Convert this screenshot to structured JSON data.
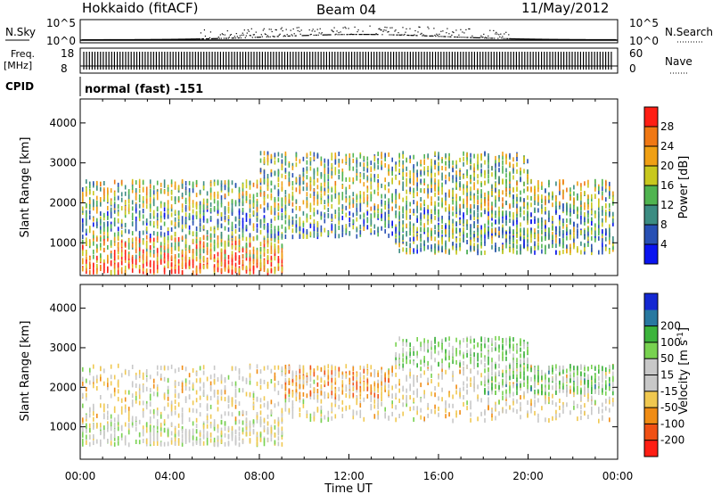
{
  "header": {
    "station": "Hokkaido (fitACF)",
    "beam": "Beam 04",
    "date": "11/May/2012"
  },
  "top_panels": {
    "nsky_label": "N.Sky",
    "nsearch_label": "N.Search",
    "noise_tick_high": "10^5",
    "noise_tick_low": "10^0",
    "freq_label": "Freq.",
    "freq_unit": "[MHz]",
    "freq_tick_high": "18",
    "freq_tick_low": "8",
    "nave_label": "Nave",
    "nave_tick_high": "60",
    "nave_tick_low": "0",
    "cpid_label": "CPID",
    "cpid_value": "normal (fast) -151"
  },
  "chart_data": [
    {
      "type": "heatmap",
      "name": "power",
      "ylabel": "Slant Range [km]",
      "ylim": [
        180,
        4600
      ],
      "yticks": [
        "1000",
        "2000",
        "3000",
        "4000"
      ],
      "colorbar_label": "Power [dB]",
      "colorbar_ticks": [
        "4",
        "8",
        "12",
        "16",
        "20",
        "24",
        "28"
      ],
      "colorbar_range": [
        0,
        32
      ],
      "colors": [
        "#0a14f0",
        "#2850b4",
        "#3c8c82",
        "#50b450",
        "#c8c81e",
        "#f0a014",
        "#f07814",
        "#ff1e14"
      ],
      "x_range_hours": [
        0,
        24
      ],
      "scatter_bands": [
        {
          "t0": 0.0,
          "t1": 9.0,
          "r0": 300,
          "r1": 700,
          "level": 0.85
        },
        {
          "t0": 0.0,
          "t1": 9.0,
          "r0": 700,
          "r1": 1200,
          "level": 0.65
        },
        {
          "t0": 0.0,
          "t1": 24.0,
          "r0": 1200,
          "r1": 1900,
          "level": 0.35
        },
        {
          "t0": 0.0,
          "t1": 24.0,
          "r0": 1900,
          "r1": 2600,
          "level": 0.5
        },
        {
          "t0": 8.0,
          "t1": 20.0,
          "r0": 2600,
          "r1": 3300,
          "level": 0.45
        },
        {
          "t0": 14.0,
          "t1": 24.0,
          "r0": 800,
          "r1": 1400,
          "level": 0.4
        }
      ]
    },
    {
      "type": "heatmap",
      "name": "velocity",
      "ylabel": "Slant Range [km]",
      "ylim": [
        180,
        4600
      ],
      "yticks": [
        "1000",
        "2000",
        "3000",
        "4000"
      ],
      "xlabel": "Time UT",
      "xticks": [
        "00:00",
        "04:00",
        "08:00",
        "12:00",
        "16:00",
        "20:00",
        "00:00"
      ],
      "colorbar_label": "Velocity [m s",
      "colorbar_label_sup": "-1",
      "colorbar_label_end": "]",
      "colorbar_ticks": [
        "-200",
        "-100",
        "-50",
        "-15",
        "15",
        "50",
        "100",
        "200"
      ],
      "colors": [
        "#ff1e14",
        "#f05014",
        "#f08c14",
        "#f0c850",
        "#c8c8c8",
        "#c8c8c8",
        "#78d250",
        "#3cb43c",
        "#2878a0",
        "#1428d2"
      ],
      "x_range_hours": [
        0,
        24
      ],
      "scatter_bands": [
        {
          "t0": 0.0,
          "t1": 9.0,
          "r0": 600,
          "r1": 1200,
          "level": 0.5
        },
        {
          "t0": 0.0,
          "t1": 24.0,
          "r0": 1200,
          "r1": 2600,
          "level": 0.45
        },
        {
          "t0": 9.0,
          "t1": 14.0,
          "r0": 1800,
          "r1": 2600,
          "level": 0.3
        },
        {
          "t0": 14.0,
          "t1": 20.0,
          "r0": 2600,
          "r1": 3300,
          "level": 0.6
        },
        {
          "t0": 18.0,
          "t1": 24.0,
          "r0": 1900,
          "r1": 2600,
          "level": 0.65
        }
      ]
    }
  ]
}
